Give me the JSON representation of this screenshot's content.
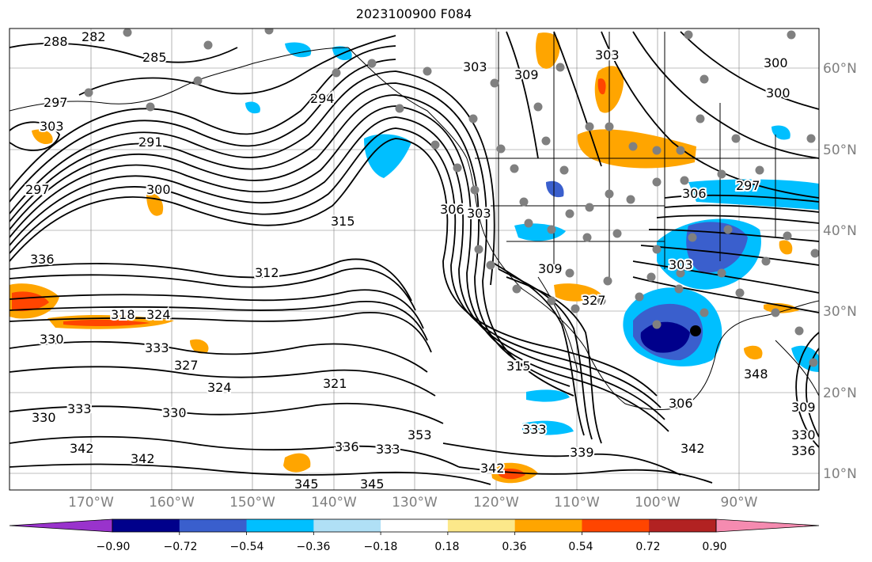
{
  "title": "2023100900 F084",
  "map": {
    "lat_labels": [
      "60°N",
      "50°N",
      "40°N",
      "30°N",
      "20°N",
      "10°N"
    ],
    "lon_labels": [
      "170°W",
      "160°W",
      "150°W",
      "140°W",
      "130°W",
      "120°W",
      "110°W",
      "100°W",
      "90°W"
    ],
    "contour_labels": [
      "288",
      "282",
      "285",
      "297",
      "303",
      "291",
      "297",
      "300",
      "294",
      "303",
      "309",
      "303",
      "300",
      "300",
      "306",
      "315",
      "306",
      "303",
      "336",
      "312",
      "309",
      "318",
      "324",
      "330",
      "333",
      "327",
      "324",
      "321",
      "315",
      "330",
      "333",
      "330",
      "342",
      "342",
      "336",
      "333",
      "353",
      "333",
      "342",
      "339",
      "345",
      "345",
      "342",
      "348",
      "297",
      "306",
      "327",
      "303",
      "309",
      "330",
      "336"
    ],
    "contour_color": "#000000",
    "land_outline_color": "#000000",
    "station_marker_color": "#808080"
  },
  "colorbar": {
    "colors": [
      "#9933cc",
      "#00008b",
      "#3a5fcd",
      "#00bfff",
      "#b0e0f6",
      "#ffffff",
      "#fce88a",
      "#ffa500",
      "#ff4500",
      "#b22222",
      "#f58bb0"
    ],
    "tick_labels": [
      "−0.90",
      "−0.72",
      "−0.54",
      "−0.36",
      "−0.18",
      "0.18",
      "0.36",
      "0.54",
      "0.72",
      "0.90"
    ]
  }
}
